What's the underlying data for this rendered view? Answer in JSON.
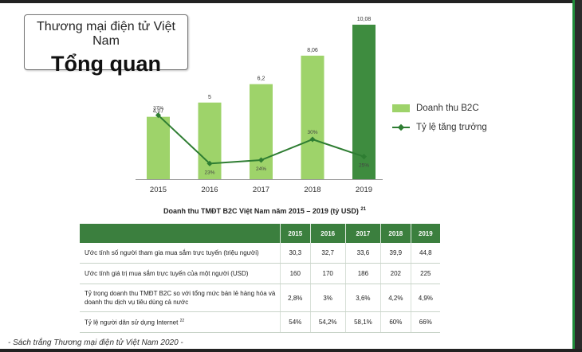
{
  "colors": {
    "bar": "#9ed36a",
    "bar_highlight": "#3e8c3f",
    "line": "#2e7d32",
    "table_header": "#3b7f3e"
  },
  "title": {
    "subtitle": "Thương mại điện tử Việt Nam",
    "main": "Tổng quan"
  },
  "legend": {
    "bar": "Doanh thu B2C",
    "line": "Tỷ lệ tăng trưởng"
  },
  "chart_data": {
    "type": "bar",
    "categories": [
      "2015",
      "2016",
      "2017",
      "2018",
      "2019"
    ],
    "series": [
      {
        "name": "Doanh thu B2C",
        "type": "bar",
        "values": [
          4.07,
          5,
          6.2,
          8.06,
          10.08
        ],
        "labels": [
          "4,07",
          "5",
          "6,2",
          "8,06",
          "10,08"
        ]
      },
      {
        "name": "Tỷ lệ tăng trưởng",
        "type": "line",
        "values": [
          37,
          23,
          24,
          30,
          25
        ],
        "labels": [
          "37%",
          "23%",
          "24%",
          "30%",
          "25%"
        ]
      }
    ],
    "ylim": [
      0,
      10.08
    ],
    "grid": false,
    "legend_position": "right"
  },
  "table": {
    "caption": "Doanh thu TMĐT B2C Việt Nam năm 2015 – 2019 (tỷ USD)",
    "caption_note": "21",
    "headers": [
      "",
      "2015",
      "2016",
      "2017",
      "2018",
      "2019"
    ],
    "rows": [
      {
        "label": "Ước tính số người tham gia mua sắm trực tuyến (triệu người)",
        "note": "",
        "values": [
          "30,3",
          "32,7",
          "33,6",
          "39,9",
          "44,8"
        ]
      },
      {
        "label": "Ước tính giá trị mua sắm trực tuyến của một người (USD)",
        "note": "",
        "values": [
          "160",
          "170",
          "186",
          "202",
          "225"
        ]
      },
      {
        "label": "Tỷ trọng doanh thu TMĐT B2C so với tổng mức bán lẻ hàng hóa và doanh thu dịch vụ tiêu dùng cả nước",
        "note": "",
        "values": [
          "2,8%",
          "3%",
          "3,6%",
          "4,2%",
          "4,9%"
        ]
      },
      {
        "label": "Tỷ lệ người dân sử dụng Internet",
        "note": "22",
        "values": [
          "54%",
          "54,2%",
          "58,1%",
          "60%",
          "66%"
        ]
      }
    ]
  },
  "source": "- Sách trắng Thương mại điện tử Việt Nam 2020 -"
}
